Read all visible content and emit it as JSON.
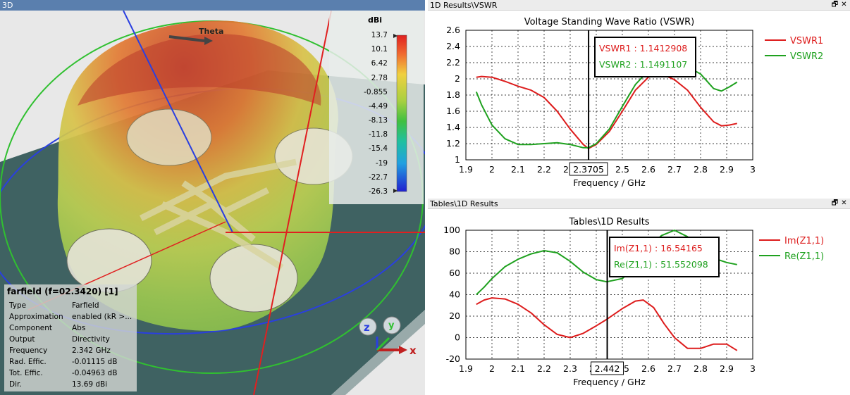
{
  "view3d": {
    "title": "3D",
    "theta_label": "Theta",
    "colorbar": {
      "unit": "dBi",
      "labels": [
        "13.7",
        "10.1",
        "6.42",
        "2.78",
        "-0.855",
        "-4.49",
        "-8.13",
        "-11.8",
        "-15.4",
        "-19",
        "-22.7",
        "-26.3"
      ]
    },
    "axes": {
      "x": "x",
      "y": "y",
      "z": "z"
    },
    "info": {
      "header": "farfield (f=02.3420) [1]",
      "rows": [
        {
          "k": "Type",
          "v": "Farfield"
        },
        {
          "k": "Approximation",
          "v": "enabled (kR >..."
        },
        {
          "k": "Component",
          "v": "Abs"
        },
        {
          "k": "Output",
          "v": "Directivity"
        },
        {
          "k": "Frequency",
          "v": "2.342 GHz"
        },
        {
          "k": "Rad. Effic.",
          "v": "-0.01115 dB"
        },
        {
          "k": "Tot. Effic.",
          "v": "-0.04963 dB"
        },
        {
          "k": "Dir.",
          "v": "13.69 dBi"
        }
      ]
    }
  },
  "vswr": {
    "panel_title": "1D Results\\VSWR",
    "btn_restore": "🗗",
    "btn_close": "✕",
    "chart_title": "Voltage Standing Wave Ratio (VSWR)",
    "xlabel": "Frequency / GHz",
    "marker_x_label": "2.3705",
    "marker": [
      {
        "text": "VSWR1 : 1.1412908",
        "color": "#dd1c1c"
      },
      {
        "text": "VSWR2 : 1.1491107",
        "color": "#1fa11f"
      }
    ],
    "legend": [
      {
        "name": "VSWR1",
        "color": "#dd1c1c"
      },
      {
        "name": "VSWR2",
        "color": "#1fa11f"
      }
    ]
  },
  "tables": {
    "panel_title": "Tables\\1D Results",
    "btn_restore": "🗗",
    "btn_close": "✕",
    "chart_title": "Tables\\1D Results",
    "xlabel": "Frequency / GHz",
    "marker_x_label": "2.442",
    "marker": [
      {
        "text": "Im(Z1,1) : 16.54165",
        "color": "#dd1c1c"
      },
      {
        "text": "Re(Z1,1) : 51.552098",
        "color": "#1fa11f"
      }
    ],
    "legend": [
      {
        "name": "Im(Z1,1)",
        "color": "#dd1c1c"
      },
      {
        "name": "Re(Z1,1)",
        "color": "#1fa11f"
      }
    ]
  },
  "chart_data": [
    {
      "type": "line",
      "title": "Voltage Standing Wave Ratio (VSWR)",
      "xlabel": "Frequency / GHz",
      "ylabel": "",
      "xlim": [
        1.9,
        3.0
      ],
      "ylim": [
        1.0,
        2.6
      ],
      "xticks": [
        "1.9",
        "2",
        "2.1",
        "2.2",
        "2.3",
        "2.4",
        "2.5",
        "2.6",
        "2.7",
        "2.8",
        "2.9",
        "3"
      ],
      "yticks": [
        "1",
        "1.2",
        "1.4",
        "1.6",
        "1.8",
        "2",
        "2.2",
        "2.4",
        "2.6"
      ],
      "grid": true,
      "legend": "right",
      "marker_x": 2.3705,
      "series": [
        {
          "name": "VSWR1",
          "color": "#dd1c1c",
          "x": [
            1.94,
            1.96,
            2.0,
            2.05,
            2.1,
            2.15,
            2.2,
            2.25,
            2.3,
            2.35,
            2.37,
            2.4,
            2.45,
            2.5,
            2.55,
            2.6,
            2.65,
            2.7,
            2.75,
            2.8,
            2.85,
            2.88,
            2.91,
            2.94
          ],
          "y": [
            2.02,
            2.03,
            2.02,
            1.97,
            1.91,
            1.86,
            1.77,
            1.6,
            1.38,
            1.19,
            1.14,
            1.19,
            1.35,
            1.6,
            1.86,
            2.02,
            2.06,
            1.99,
            1.86,
            1.65,
            1.47,
            1.42,
            1.43,
            1.45
          ]
        },
        {
          "name": "VSWR2",
          "color": "#1fa11f",
          "x": [
            1.94,
            1.96,
            2.0,
            2.05,
            2.1,
            2.15,
            2.2,
            2.25,
            2.3,
            2.35,
            2.37,
            2.4,
            2.45,
            2.5,
            2.55,
            2.6,
            2.65,
            2.7,
            2.75,
            2.8,
            2.85,
            2.88,
            2.91,
            2.94
          ],
          "y": [
            1.84,
            1.68,
            1.43,
            1.26,
            1.19,
            1.19,
            1.2,
            1.21,
            1.19,
            1.15,
            1.15,
            1.2,
            1.38,
            1.66,
            1.93,
            2.1,
            2.18,
            2.18,
            2.15,
            2.06,
            1.88,
            1.85,
            1.9,
            1.96
          ]
        }
      ]
    },
    {
      "type": "line",
      "title": "Tables\\1D Results",
      "xlabel": "Frequency / GHz",
      "ylabel": "",
      "xlim": [
        1.9,
        3.0
      ],
      "ylim": [
        -20,
        100
      ],
      "xticks": [
        "1.9",
        "2",
        "2.1",
        "2.2",
        "2.3",
        "2.4",
        "2.5",
        "2.6",
        "2.7",
        "2.8",
        "2.9",
        "3"
      ],
      "yticks": [
        "-20",
        "0",
        "20",
        "40",
        "60",
        "80",
        "100"
      ],
      "grid": true,
      "legend": "right",
      "marker_x": 2.442,
      "series": [
        {
          "name": "Im(Z1,1)",
          "color": "#dd1c1c",
          "x": [
            1.94,
            1.97,
            2.0,
            2.05,
            2.1,
            2.15,
            2.2,
            2.25,
            2.3,
            2.35,
            2.4,
            2.44,
            2.5,
            2.55,
            2.58,
            2.62,
            2.66,
            2.7,
            2.75,
            2.8,
            2.85,
            2.9,
            2.94
          ],
          "y": [
            31,
            35,
            37,
            36,
            31,
            23,
            12,
            3,
            0,
            4,
            11,
            17,
            27,
            34,
            35,
            28,
            13,
            0,
            -10,
            -10,
            -6,
            -6,
            -12
          ]
        },
        {
          "name": "Re(Z1,1)",
          "color": "#1fa11f",
          "x": [
            1.94,
            1.97,
            2.0,
            2.05,
            2.1,
            2.15,
            2.2,
            2.25,
            2.3,
            2.35,
            2.4,
            2.44,
            2.5,
            2.55,
            2.6,
            2.65,
            2.7,
            2.75,
            2.8,
            2.85,
            2.9,
            2.94
          ],
          "y": [
            40,
            47,
            55,
            66,
            73,
            78,
            81,
            79,
            71,
            61,
            54,
            52,
            55,
            66,
            84,
            95,
            100,
            94,
            83,
            74,
            70,
            68
          ]
        }
      ]
    }
  ]
}
